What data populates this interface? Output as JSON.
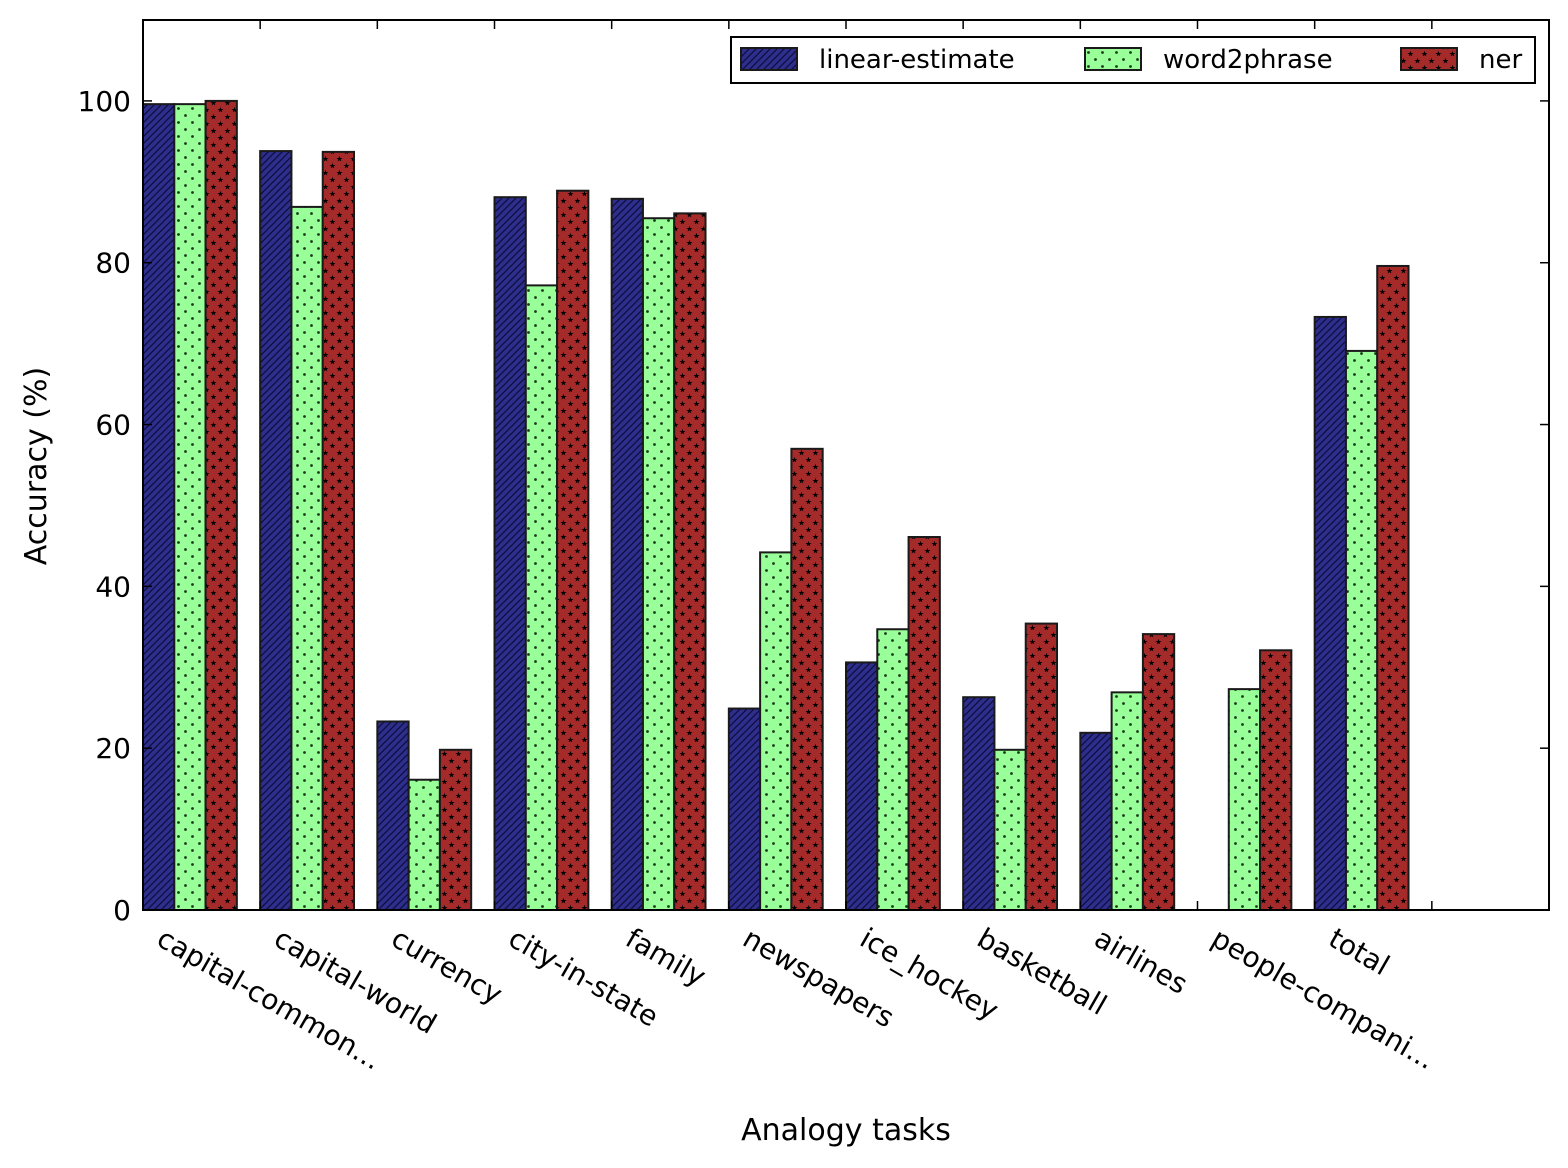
{
  "chart_data": {
    "type": "bar",
    "title": "",
    "xlabel": "Analogy tasks",
    "ylabel": "Accuracy (%)",
    "ylim": [
      0,
      110
    ],
    "yticks": [
      0,
      20,
      40,
      60,
      80,
      100
    ],
    "grid": false,
    "legend_position": "top-right",
    "categories": [
      "capital-common...",
      "capital-world",
      "currency",
      "city-in-state",
      "family",
      "newspapers",
      "ice_hockey",
      "basketball",
      "airlines",
      "people-compani...",
      "total"
    ],
    "series": [
      {
        "name": "linear-estimate",
        "color": "#2e2e8c",
        "pattern": "hatch",
        "values": [
          99.6,
          93.8,
          23.3,
          88.1,
          87.9,
          24.9,
          30.6,
          26.3,
          21.9,
          0,
          73.3
        ]
      },
      {
        "name": "word2phrase",
        "color": "#99ff99",
        "pattern": "dots",
        "values": [
          99.6,
          86.9,
          16.1,
          77.2,
          85.5,
          44.2,
          34.7,
          19.8,
          26.9,
          27.3,
          69.1
        ]
      },
      {
        "name": "ner",
        "color": "#a52a2a",
        "pattern": "stars",
        "values": [
          100.0,
          93.7,
          19.8,
          88.9,
          86.1,
          57.0,
          46.1,
          35.4,
          34.1,
          32.1,
          79.6
        ]
      }
    ]
  }
}
